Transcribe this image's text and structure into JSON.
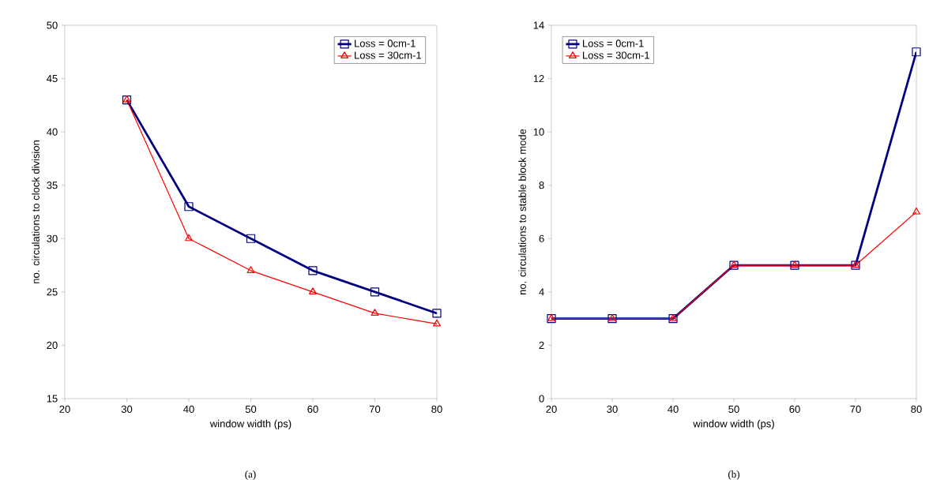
{
  "chart_data": [
    {
      "type": "line",
      "x": [
        30,
        40,
        50,
        60,
        70,
        80
      ],
      "xlim": [
        20,
        80
      ],
      "ylim": [
        15,
        50
      ],
      "xticks": [
        20,
        30,
        40,
        50,
        60,
        70,
        80
      ],
      "yticks": [
        15,
        20,
        25,
        30,
        35,
        40,
        45,
        50
      ],
      "xlabel": "window width (ps)",
      "ylabel": "no. circulations to clock division",
      "legend": "top right",
      "line_style": "solid",
      "annotations": [
        "(a)"
      ],
      "series": [
        {
          "name": "Loss = 0cm-1",
          "color": "#000080",
          "marker": "square",
          "values": [
            43,
            33,
            30,
            27,
            25,
            23
          ]
        },
        {
          "name": "Loss = 30cm-1",
          "color": "#ff0000",
          "marker": "triangle",
          "values": [
            43,
            30,
            27,
            25,
            23,
            22
          ]
        }
      ]
    },
    {
      "type": "line",
      "x": [
        20,
        30,
        40,
        50,
        60,
        70,
        80
      ],
      "xlim": [
        20,
        80
      ],
      "ylim": [
        0,
        14
      ],
      "xticks": [
        20,
        30,
        40,
        50,
        60,
        70,
        80
      ],
      "yticks": [
        0,
        2,
        4,
        6,
        8,
        10,
        12,
        14
      ],
      "xlabel": "window width (ps)",
      "ylabel": "no. circulations to stable block mode",
      "legend": "top left",
      "line_style": "solid",
      "annotations": [
        "(b)"
      ],
      "series": [
        {
          "name": "Loss = 0cm-1",
          "color": "#000080",
          "marker": "square",
          "values": [
            3,
            3,
            3,
            5,
            5,
            5,
            13
          ]
        },
        {
          "name": "Loss = 30cm-1",
          "color": "#ff0000",
          "marker": "triangle",
          "values": [
            3,
            3,
            3,
            5,
            5,
            5,
            7
          ]
        }
      ]
    }
  ]
}
